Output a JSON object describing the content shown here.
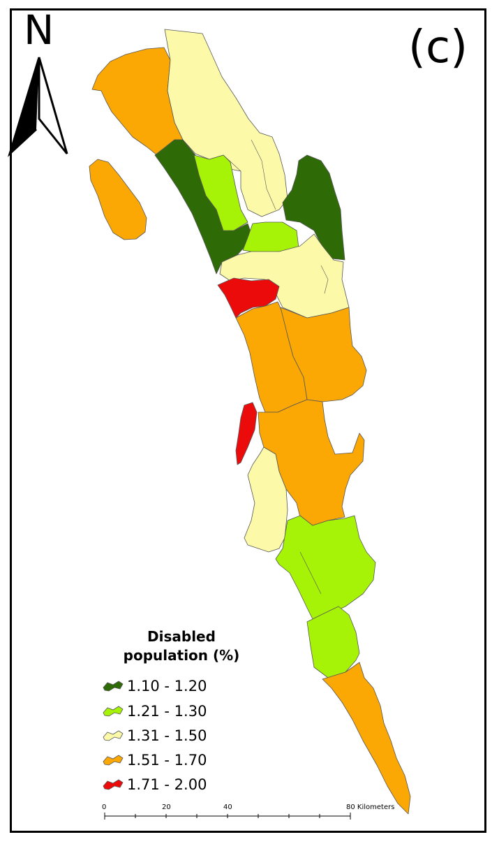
{
  "map": {
    "north_label": "N",
    "panel_label": "(c)",
    "legend": {
      "title_line1": "Disabled",
      "title_line2": "population (%)",
      "classes": [
        {
          "label": "1.10 - 1.20",
          "color": "#2e6b06"
        },
        {
          "label": "1.21 - 1.30",
          "color": "#a6f307"
        },
        {
          "label": "1.31 - 1.50",
          "color": "#fcfaa9"
        },
        {
          "label": "1.51 - 1.70",
          "color": "#fba704"
        },
        {
          "label": "1.71 - 2.00",
          "color": "#ec0b0b"
        }
      ]
    },
    "scale_bar": {
      "labels": [
        "0",
        "20",
        "40",
        "80 Kilometers"
      ]
    }
  }
}
